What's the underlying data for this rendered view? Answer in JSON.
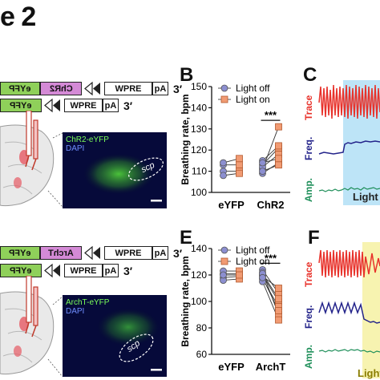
{
  "figure": {
    "title": "e 2"
  },
  "panels": {
    "A_top": {
      "construct1": {
        "box1": "eYFP",
        "box2": "ChR2",
        "box3": "WPRE",
        "box4": "pA",
        "end": "3′"
      },
      "construct2": {
        "box1": "eYFP",
        "box2": "WPRE",
        "box3": "pA",
        "end": "3′"
      },
      "micro": {
        "label1": "ChR2-eYFP",
        "label2": "DAPI",
        "region": "scp"
      }
    },
    "A_bottom": {
      "construct1": {
        "box1": "eYFP",
        "box2": "ArchT",
        "box3": "WPRE",
        "box4": "pA",
        "end": "3′"
      },
      "construct2": {
        "box1": "eYFP",
        "box2": "WPRE",
        "box3": "pA",
        "end": "3′"
      },
      "micro": {
        "label1": "ArchT-eYFP",
        "label2": "DAPI",
        "region": "scp"
      }
    },
    "B": {
      "letter": "B"
    },
    "C": {
      "letter": "C",
      "trace": "Trace",
      "freq": "Freq.",
      "amp": "Amp.",
      "light": "Light"
    },
    "E": {
      "letter": "E"
    },
    "F": {
      "letter": "F",
      "trace": "Trace",
      "freq": "Freq.",
      "amp": "Amp.",
      "light": "Light"
    }
  },
  "colors": {
    "light_off": "#8c8fd0",
    "light_on": "#f19b73",
    "trace": "#e8322b",
    "freq": "#23238a",
    "amp": "#1f8f5a",
    "blue_shade": "#bde4f7",
    "yellow_shade": "#f7f3b0"
  },
  "chart_data": [
    {
      "type": "scatter",
      "panel": "B",
      "xlabel": "",
      "ylabel": "Breathing rate, bpm",
      "ylim": [
        100,
        150
      ],
      "yticks": [
        100,
        110,
        120,
        130,
        140,
        150
      ],
      "categories": [
        "eYFP",
        "ChR2"
      ],
      "legend": [
        "Light off",
        "Light on"
      ],
      "legend_position": "top",
      "significance": {
        "group": "ChR2",
        "label": "***"
      },
      "series": [
        {
          "name": "Light off",
          "values": {
            "eYFP": [
              113,
              110,
              108,
              114
            ],
            "ChR2": [
              111,
              113,
              115,
              109,
              112,
              110,
              114
            ]
          }
        },
        {
          "name": "Light on",
          "values": {
            "eYFP": [
              113,
              110,
              109,
              116
            ],
            "ChR2": [
              131,
              121,
              122,
              114,
              118,
              113,
              116
            ]
          }
        }
      ]
    },
    {
      "type": "scatter",
      "panel": "E",
      "xlabel": "",
      "ylabel": "Breathing rate, bpm",
      "ylim": [
        60,
        140
      ],
      "yticks": [
        60,
        80,
        100,
        120,
        140
      ],
      "categories": [
        "eYFP",
        "ArchT"
      ],
      "legend": [
        "Light off",
        "Light on"
      ],
      "legend_position": "top",
      "significance": {
        "group": "ArchT",
        "label": "***"
      },
      "series": [
        {
          "name": "Light off",
          "values": {
            "eYFP": [
              121,
              118,
              123,
              116,
              120
            ],
            "ArchT": [
              124,
              120,
              117,
              122,
              119,
              115,
              121,
              118
            ]
          }
        },
        {
          "name": "Light on",
          "values": {
            "eYFP": [
              121,
              119,
              123,
              117,
              120
            ],
            "ArchT": [
              106,
              100,
              96,
              90,
              110,
              86,
              102,
              93
            ]
          }
        }
      ]
    }
  ]
}
